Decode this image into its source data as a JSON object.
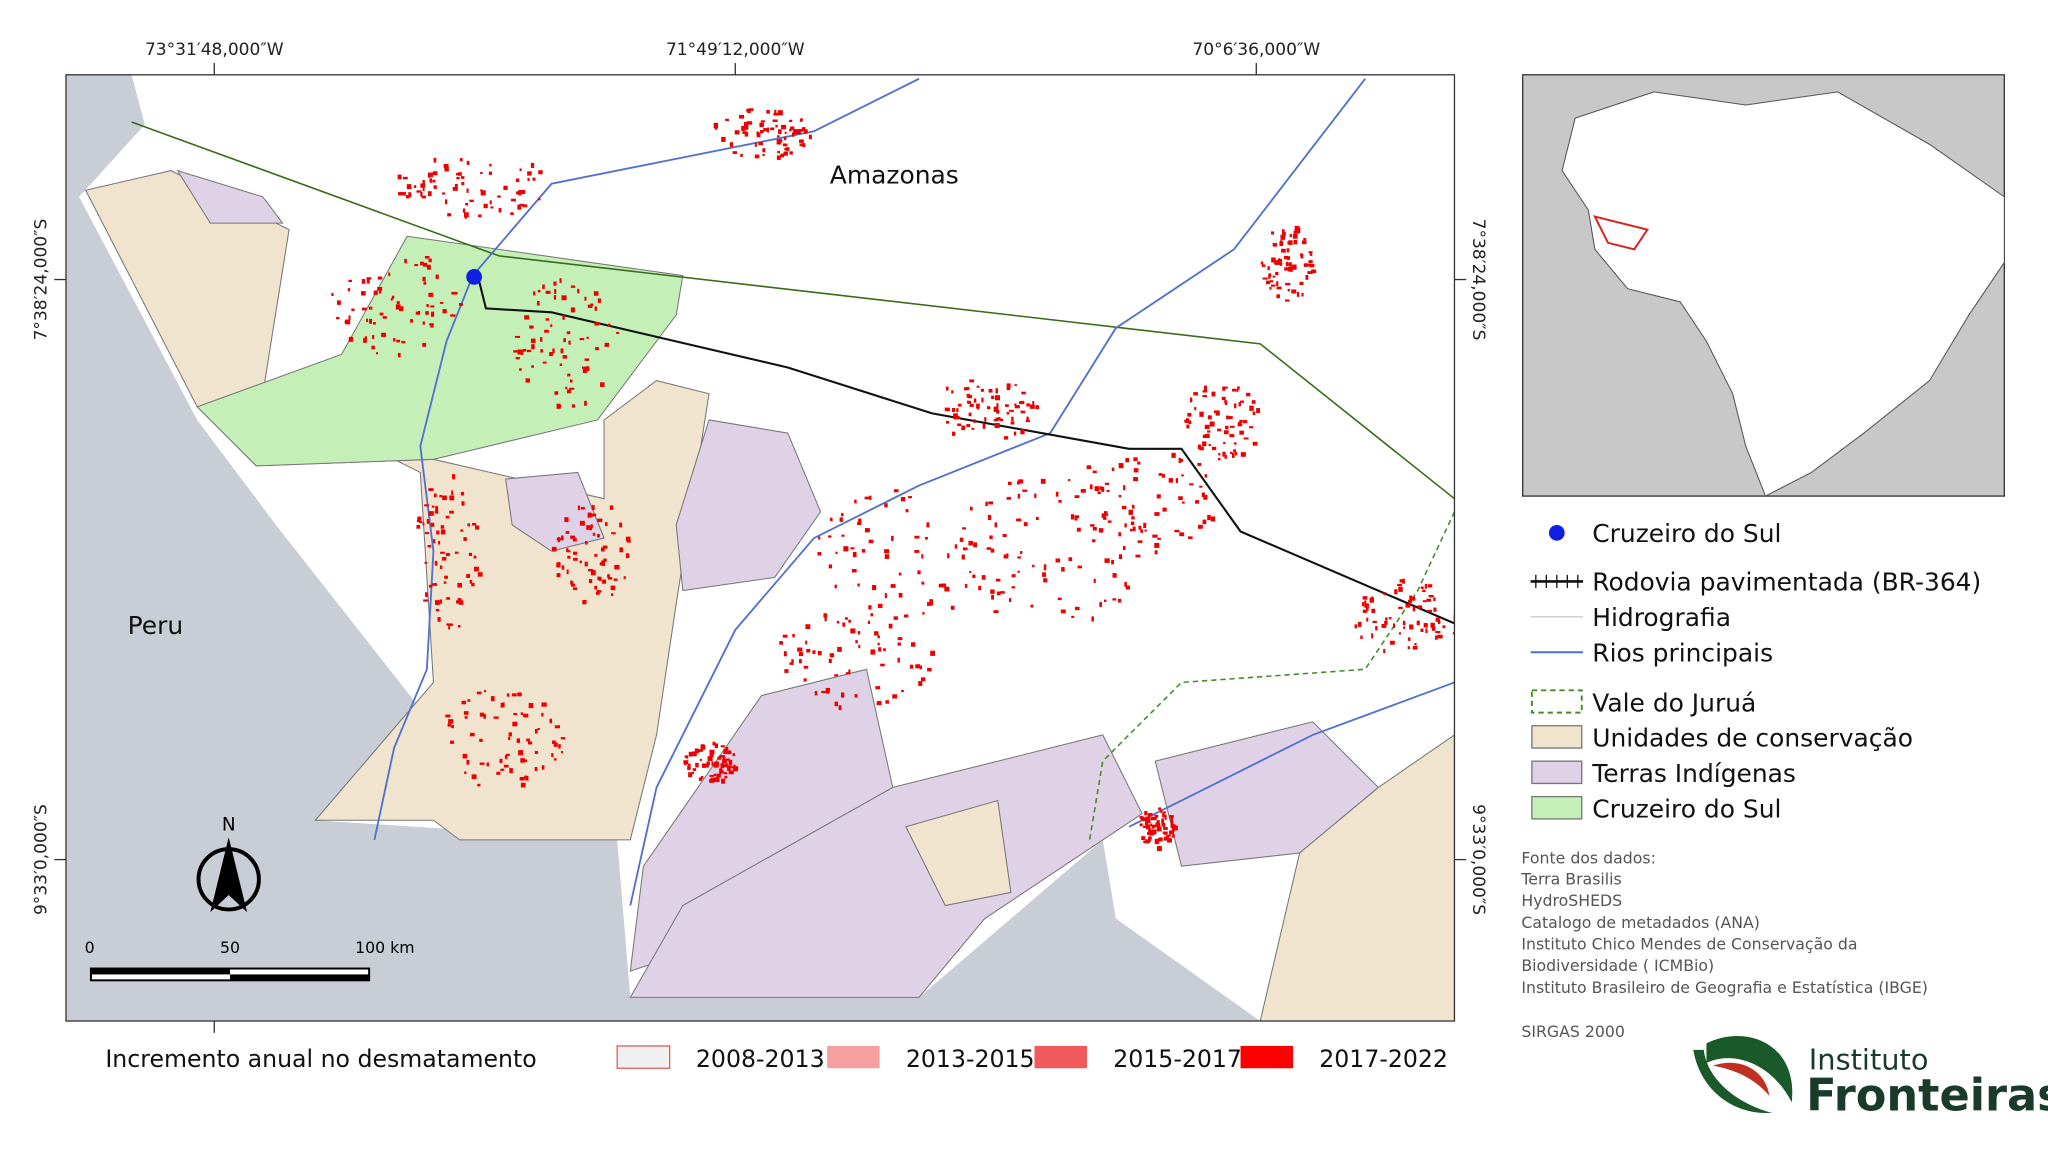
{
  "map": {
    "top_labels": [
      "73°31′48,000″W",
      "71°49′12,000″W",
      "70°6′36,000″W"
    ],
    "left_labels": [
      "7°38′24,000″S",
      "9°33′0,000″S"
    ],
    "right_labels": [
      "7°38′24,000″S",
      "9°33′0,000″S"
    ],
    "place_labels": [
      "Amazonas",
      "Peru"
    ],
    "north": "N",
    "scale": [
      "0",
      "50",
      "100 km"
    ]
  },
  "legend": {
    "items": [
      "Cruzeiro do Sul",
      "Rodovia pavimentada (BR-364)",
      "Hidrografia",
      "Rios principais",
      "Vale do Juruá",
      "Unidades de conservação",
      "Terras Indígenas",
      "Cruzeiro do Sul"
    ]
  },
  "sources": {
    "title": "Fonte dos dados:",
    "lines": [
      "Terra Brasilis",
      "HydroSHEDS",
      "Catalogo de metadados (ANA)",
      "Instituto Chico Mendes de Conservação da",
      "Biodiversidade ( ICMBio)",
      "Instituto Brasileiro de Geografia e Estatística (IBGE)"
    ],
    "crs": "SIRGAS 2000"
  },
  "deforestation_legend": {
    "title": "Incremento anual no desmatamento",
    "periods": [
      "2008-2013",
      "2013-2015",
      "2015-2017",
      "2017-2022"
    ]
  },
  "logo": {
    "line1": "Instituto",
    "line2": "Fronteiras"
  }
}
